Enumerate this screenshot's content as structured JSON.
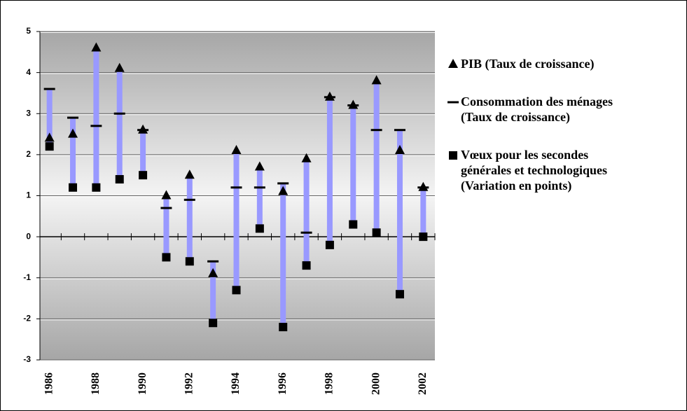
{
  "chart_data": {
    "type": "highlow",
    "categories": [
      "1986",
      null,
      "1988",
      null,
      "1990",
      null,
      "1992",
      null,
      "1994",
      null,
      "1996",
      null,
      "1998",
      null,
      "2000",
      null,
      "2002"
    ],
    "series": [
      {
        "name": "PIB (Taux de croissance)",
        "marker": "triangle",
        "color": "#000000",
        "values": [
          2.4,
          2.5,
          4.6,
          4.1,
          2.6,
          1.0,
          1.5,
          -0.9,
          2.1,
          1.7,
          1.1,
          1.9,
          3.4,
          3.2,
          3.8,
          2.1,
          1.2
        ]
      },
      {
        "name": "Consommation des ménages (Taux de croissance)",
        "marker": "dash",
        "color": "#000000",
        "values": [
          3.6,
          2.9,
          2.7,
          3.0,
          2.6,
          0.7,
          0.9,
          -0.6,
          1.2,
          1.2,
          1.3,
          0.1,
          3.4,
          3.2,
          2.6,
          2.6,
          1.2
        ]
      },
      {
        "name": "Vœux pour les secondes générales et technologiques (Variation en points)",
        "marker": "square",
        "color": "#000000",
        "values": [
          2.2,
          1.2,
          1.2,
          1.4,
          1.5,
          -0.5,
          -0.6,
          -2.1,
          -1.3,
          0.2,
          -2.2,
          -0.7,
          -0.2,
          0.3,
          0.1,
          -1.4,
          0.0
        ]
      }
    ],
    "range_color": "#9999ff",
    "ylim": [
      -3,
      5
    ],
    "yticks": [
      -3,
      -2,
      -1,
      0,
      1,
      2,
      3,
      4,
      5
    ],
    "grid": true,
    "legend": "right"
  }
}
